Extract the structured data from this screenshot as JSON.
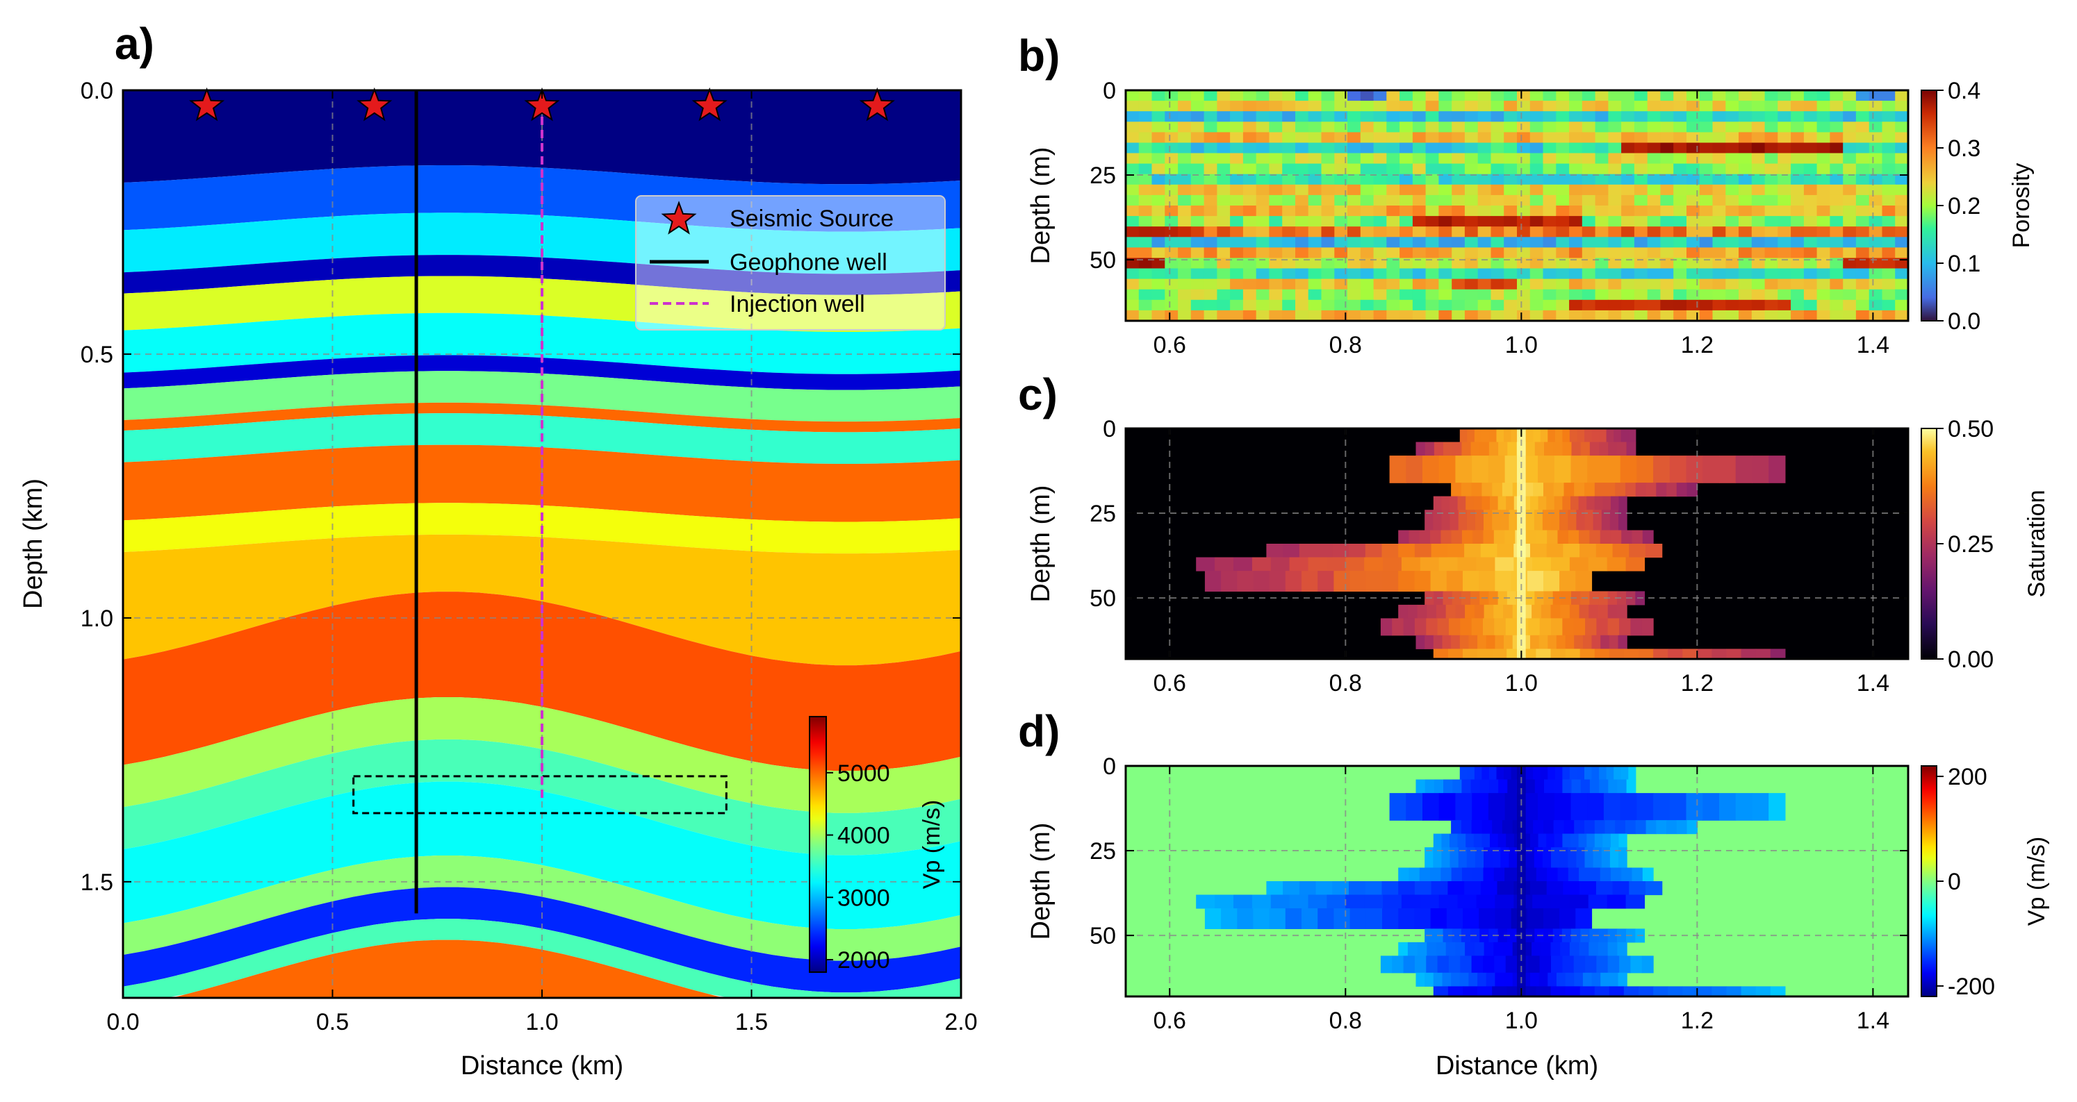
{
  "figure": {
    "colors": {
      "star": "#e41a1c",
      "geophone": "#000000",
      "injection": "#cc33cc",
      "box": "#000000",
      "grid": "#888888"
    }
  },
  "chart_data": [
    {
      "id": "a",
      "panel_label": "a)",
      "type": "heatmap",
      "title": "",
      "xlabel": "Distance (km)",
      "ylabel": "Depth (km)",
      "xlim": [
        0.0,
        2.0
      ],
      "ylim": [
        0.0,
        1.72
      ],
      "xticks": [
        0.0,
        0.5,
        1.0,
        1.5,
        2.0
      ],
      "xtick_labels": [
        "0.0",
        "0.5",
        "1.0",
        "1.5",
        "2.0"
      ],
      "yticks": [
        0.0,
        0.5,
        1.0,
        1.5
      ],
      "ytick_labels": [
        "0.0",
        "0.5",
        "1.0",
        "1.5"
      ],
      "colormap": "jet",
      "colorbar": {
        "label": "Vp (m/s)",
        "range": [
          1800,
          5900
        ],
        "ticks": [
          2000,
          3000,
          4000,
          5000
        ],
        "tick_labels": [
          "2000",
          "3000",
          "4000",
          "5000"
        ]
      },
      "layers": [
        {
          "top": 0.0,
          "bottom": 0.16,
          "vp": 1500
        },
        {
          "top": 0.16,
          "bottom": 0.25,
          "vp": 2600
        },
        {
          "top": 0.25,
          "bottom": 0.33,
          "vp": 3200
        },
        {
          "top": 0.33,
          "bottom": 0.37,
          "vp": 2000
        },
        {
          "top": 0.37,
          "bottom": 0.44,
          "vp": 4200
        },
        {
          "top": 0.44,
          "bottom": 0.52,
          "vp": 3300
        },
        {
          "top": 0.52,
          "bottom": 0.55,
          "vp": 2100
        },
        {
          "top": 0.55,
          "bottom": 0.61,
          "vp": 3800
        },
        {
          "top": 0.61,
          "bottom": 0.63,
          "vp": 5000
        },
        {
          "top": 0.63,
          "bottom": 0.69,
          "vp": 3500
        },
        {
          "top": 0.69,
          "bottom": 0.8,
          "vp": 5000
        },
        {
          "top": 0.8,
          "bottom": 0.86,
          "vp": 4300
        },
        {
          "top": 0.86,
          "bottom": 1.02,
          "vp": 4600
        },
        {
          "top": 1.02,
          "bottom": 1.22,
          "vp": 5100
        },
        {
          "top": 1.22,
          "bottom": 1.3,
          "vp": 4000
        },
        {
          "top": 1.3,
          "bottom": 1.38,
          "vp": 3600
        },
        {
          "top": 1.38,
          "bottom": 1.52,
          "vp": 3300
        },
        {
          "top": 1.52,
          "bottom": 1.58,
          "vp": 3900
        },
        {
          "top": 1.58,
          "bottom": 1.64,
          "vp": 2400
        },
        {
          "top": 1.64,
          "bottom": 1.68,
          "vp": 3600
        },
        {
          "top": 1.68,
          "bottom": 1.72,
          "vp": 5000
        }
      ],
      "sources": {
        "x": [
          0.2,
          0.6,
          1.0,
          1.4,
          1.8
        ],
        "depth": 0.03
      },
      "geophone_well": {
        "x": 0.7,
        "depth_range": [
          0.0,
          1.56
        ]
      },
      "injection_well": {
        "x": 1.0,
        "depth_range": [
          0.0,
          1.35
        ]
      },
      "reservoir_box": {
        "x_range": [
          0.55,
          1.44
        ],
        "depth_range": [
          1.3,
          1.37
        ]
      },
      "legend": {
        "placement": "upper-right",
        "entries": [
          "Seismic Source",
          "Geophone well",
          "Injection well"
        ]
      }
    },
    {
      "id": "b",
      "panel_label": "b)",
      "type": "heatmap",
      "xlabel": "",
      "ylabel": "Depth (m)",
      "xlim": [
        0.55,
        1.44
      ],
      "ylim": [
        0,
        68
      ],
      "xticks": [
        0.6,
        0.8,
        1.0,
        1.2,
        1.4
      ],
      "xtick_labels": [
        "0.6",
        "0.8",
        "1.0",
        "1.2",
        "1.4"
      ],
      "yticks": [
        0,
        25,
        50
      ],
      "ytick_labels": [
        "0",
        "25",
        "50"
      ],
      "colormap": "turbo",
      "colorbar": {
        "label": "Porosity",
        "range": [
          0.0,
          0.4
        ],
        "ticks": [
          0.0,
          0.1,
          0.2,
          0.3,
          0.4
        ],
        "tick_labels": [
          "0.0",
          "0.1",
          "0.2",
          "0.3",
          "0.4"
        ]
      },
      "rows": [
        0.2,
        0.23,
        0.12,
        0.21,
        0.25,
        0.13,
        0.21,
        0.19,
        0.14,
        0.24,
        0.22,
        0.26,
        0.19,
        0.3,
        0.11,
        0.27,
        0.22,
        0.14,
        0.24,
        0.2,
        0.19,
        0.26
      ],
      "highlights": [
        {
          "row": 12,
          "x_range": [
            0.87,
            1.07
          ],
          "value": 0.37
        },
        {
          "row": 5,
          "x_range": [
            1.12,
            1.36
          ],
          "value": 0.38
        },
        {
          "row": 13,
          "x_range": [
            0.55,
            0.64
          ],
          "value": 0.36
        },
        {
          "row": 16,
          "x_range": [
            0.55,
            0.6
          ],
          "value": 0.38
        },
        {
          "row": 16,
          "x_range": [
            1.36,
            1.44
          ],
          "value": 0.36
        },
        {
          "row": 20,
          "x_range": [
            1.05,
            1.3
          ],
          "value": 0.36
        },
        {
          "row": 0,
          "x_range": [
            0.8,
            0.84
          ],
          "value": 0.04
        },
        {
          "row": 0,
          "x_range": [
            1.38,
            1.42
          ],
          "value": 0.06
        },
        {
          "row": 18,
          "x_range": [
            0.92,
            1.0
          ],
          "value": 0.34
        }
      ]
    },
    {
      "id": "c",
      "panel_label": "c)",
      "type": "heatmap",
      "xlabel": "",
      "ylabel": "Depth (m)",
      "xlim": [
        0.55,
        1.44
      ],
      "ylim": [
        0,
        68
      ],
      "xticks": [
        0.6,
        0.8,
        1.0,
        1.2,
        1.4
      ],
      "xtick_labels": [
        "0.6",
        "0.8",
        "1.0",
        "1.2",
        "1.4"
      ],
      "yticks": [
        0,
        25,
        50
      ],
      "ytick_labels": [
        "0",
        "25",
        "50"
      ],
      "colormap": "inferno",
      "colorbar": {
        "label": "Saturation",
        "range": [
          0.0,
          0.5
        ],
        "ticks": [
          0.0,
          0.25,
          0.5
        ],
        "tick_labels": [
          "0.00",
          "0.25",
          "0.50"
        ]
      },
      "plume_rows": [
        {
          "depth_range": [
            0,
            4
          ],
          "x_range": [
            0.93,
            1.13
          ]
        },
        {
          "depth_range": [
            4,
            8
          ],
          "x_range": [
            0.88,
            1.13
          ]
        },
        {
          "depth_range": [
            8,
            16
          ],
          "x_range": [
            0.85,
            1.3
          ]
        },
        {
          "depth_range": [
            16,
            20
          ],
          "x_range": [
            0.92,
            1.2
          ]
        },
        {
          "depth_range": [
            20,
            24
          ],
          "x_range": [
            0.9,
            1.12
          ]
        },
        {
          "depth_range": [
            24,
            30
          ],
          "x_range": [
            0.89,
            1.12
          ]
        },
        {
          "depth_range": [
            30,
            34
          ],
          "x_range": [
            0.86,
            1.15
          ]
        },
        {
          "depth_range": [
            34,
            38
          ],
          "x_range": [
            0.71,
            1.16
          ]
        },
        {
          "depth_range": [
            38,
            42
          ],
          "x_range": [
            0.63,
            1.14
          ]
        },
        {
          "depth_range": [
            42,
            48
          ],
          "x_range": [
            0.64,
            1.08
          ]
        },
        {
          "depth_range": [
            48,
            52
          ],
          "x_range": [
            0.89,
            1.14
          ]
        },
        {
          "depth_range": [
            52,
            56
          ],
          "x_range": [
            0.86,
            1.12
          ]
        },
        {
          "depth_range": [
            56,
            61
          ],
          "x_range": [
            0.84,
            1.15
          ]
        },
        {
          "depth_range": [
            61,
            65
          ],
          "x_range": [
            0.88,
            1.12
          ]
        },
        {
          "depth_range": [
            65,
            68
          ],
          "x_range": [
            0.9,
            1.3
          ]
        }
      ]
    },
    {
      "id": "d",
      "panel_label": "d)",
      "type": "heatmap",
      "xlabel": "Distance (km)",
      "ylabel": "Depth (m)",
      "xlim": [
        0.55,
        1.44
      ],
      "ylim": [
        0,
        68
      ],
      "xticks": [
        0.6,
        0.8,
        1.0,
        1.2,
        1.4
      ],
      "xtick_labels": [
        "0.6",
        "0.8",
        "1.0",
        "1.2",
        "1.4"
      ],
      "yticks": [
        0,
        25,
        50
      ],
      "ytick_labels": [
        "0",
        "25",
        "50"
      ],
      "colormap": "jet",
      "colorbar": {
        "label": "Vp (m/s)",
        "range": [
          -220,
          220
        ],
        "ticks": [
          200,
          0,
          -200
        ],
        "tick_labels": [
          "200",
          "0",
          "-200"
        ]
      }
    }
  ]
}
